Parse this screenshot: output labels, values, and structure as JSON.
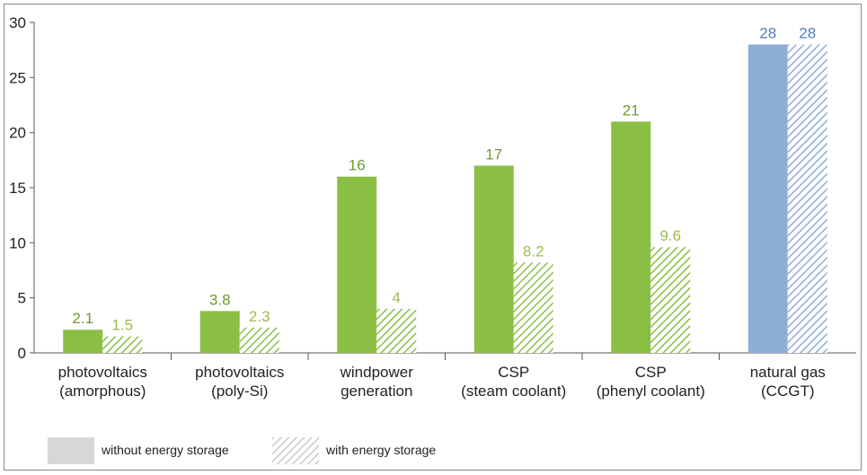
{
  "chart_data": {
    "type": "bar",
    "categories": [
      [
        "photovoltaics",
        "(amorphous)"
      ],
      [
        "photovoltaics",
        "(poly-Si)"
      ],
      [
        "windpower",
        "generation"
      ],
      [
        "CSP",
        "(steam coolant)"
      ],
      [
        "CSP",
        "(phenyl coolant)"
      ],
      [
        "natural gas",
        "(CCGT)"
      ]
    ],
    "series": [
      {
        "name": "without energy storage",
        "values": [
          2.1,
          3.8,
          16,
          17,
          21,
          28
        ],
        "labels": [
          "2.1",
          "3.8",
          "16",
          "17",
          "21",
          "28"
        ]
      },
      {
        "name": "with energy storage",
        "values": [
          1.5,
          2.3,
          4,
          8.2,
          9.6,
          28
        ],
        "labels": [
          "1.5",
          "2.3",
          "4",
          "8.2",
          "9.6",
          "28"
        ]
      }
    ],
    "title": "",
    "xlabel": "",
    "ylabel": "",
    "ylim": [
      0,
      30
    ],
    "yticks": [
      "0",
      "5",
      "10",
      "15",
      "20",
      "25",
      "30"
    ],
    "grid": false,
    "legend_position": "bottom-left",
    "colors": {
      "green": "#8bbf44",
      "green_label": "#6f9a2e",
      "green_hatch_label": "#9dbb4e",
      "blue": "#8eaed8",
      "blue_label": "#4f7fba",
      "legend_grey": "#d7d7d7"
    }
  }
}
